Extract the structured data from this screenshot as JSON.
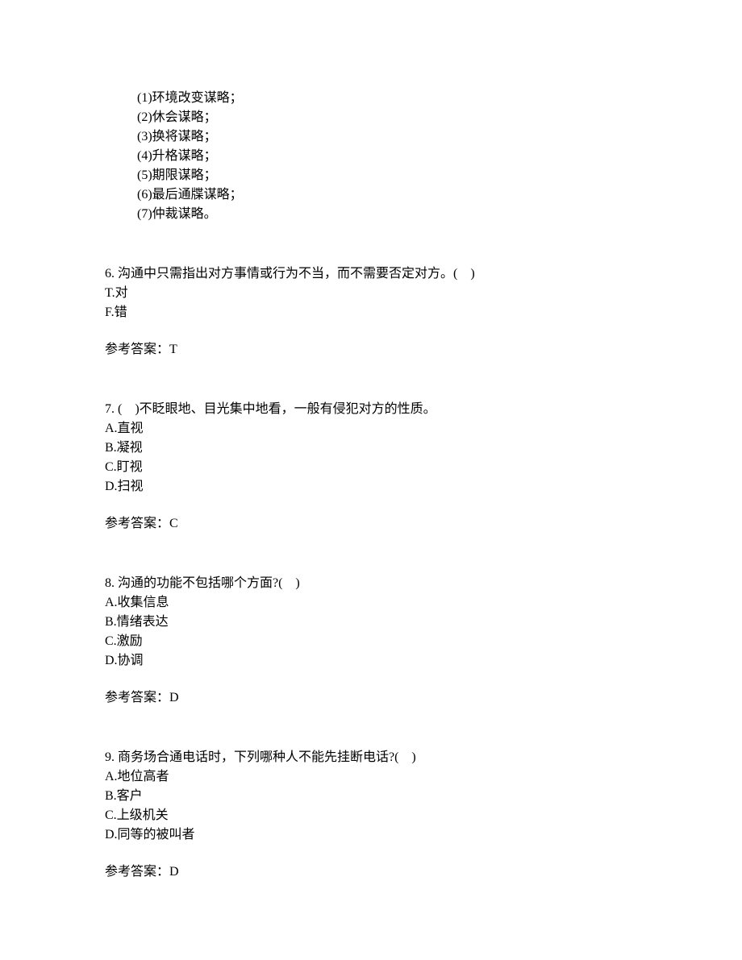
{
  "listSection": {
    "items": [
      "(1)环境改变谋略；",
      "(2)休会谋略；",
      "(3)换将谋略；",
      "(4)升格谋略；",
      "(5)期限谋略；",
      "(6)最后通牒谋略；",
      "(7)仲裁谋略。"
    ]
  },
  "questions": [
    {
      "number": "6.",
      "text": "沟通中只需指出对方事情或行为不当，而不需要否定对方。(　)",
      "options": [
        "T.对",
        "F.错"
      ],
      "answerLabel": "参考答案：",
      "answerValue": "T"
    },
    {
      "number": "7.",
      "text": "(　)不眨眼地、目光集中地看，一般有侵犯对方的性质。",
      "options": [
        "A.直视",
        "B.凝视",
        "C.盯视",
        "D.扫视"
      ],
      "answerLabel": "参考答案：",
      "answerValue": "C"
    },
    {
      "number": "8.",
      "text": "沟通的功能不包括哪个方面?(　)",
      "options": [
        "A.收集信息",
        "B.情绪表达",
        "C.激励",
        "D.协调"
      ],
      "answerLabel": "参考答案：",
      "answerValue": "D"
    },
    {
      "number": "9.",
      "text": "商务场合通电话时，下列哪种人不能先挂断电话?(　)",
      "options": [
        "A.地位高者",
        "B.客户",
        "C.上级机关",
        "D.同等的被叫者"
      ],
      "answerLabel": "参考答案：",
      "answerValue": "D"
    }
  ]
}
